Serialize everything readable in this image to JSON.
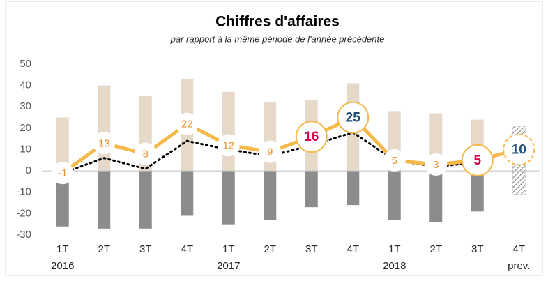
{
  "chart_data": {
    "type": "bar-line",
    "title": "Chiffres d'affaires",
    "subtitle": "par rapport à la même période de l'année précédente",
    "categories": [
      "1T",
      "2T",
      "3T",
      "4T",
      "1T",
      "2T",
      "3T",
      "4T",
      "1T",
      "2T",
      "3T",
      "4T"
    ],
    "sublabels": [
      "2016",
      null,
      null,
      null,
      "2017",
      null,
      null,
      null,
      "2018",
      null,
      null,
      "prev."
    ],
    "ylim": [
      -30,
      50
    ],
    "yticks": [
      -30,
      -20,
      -10,
      0,
      10,
      20,
      30,
      40,
      50
    ],
    "forecast_index": 11,
    "series": [
      {
        "kind": "bar",
        "color": "#e6d9ca",
        "values": [
          25,
          40,
          35,
          43,
          37,
          32,
          33,
          41,
          28,
          27,
          24,
          21
        ]
      },
      {
        "kind": "bar",
        "color": "#8c8c8c",
        "values": [
          -26,
          -27,
          -27,
          -21,
          -25,
          -23,
          -17,
          -16,
          -23,
          -24,
          -19,
          -11
        ]
      },
      {
        "kind": "dotted",
        "color": "#000000",
        "values": [
          -1,
          6,
          1,
          14,
          10,
          7,
          12,
          18,
          5,
          2,
          4,
          11
        ]
      },
      {
        "kind": "line",
        "color": "#f5b94a",
        "values": [
          -1,
          13,
          8,
          22,
          12,
          9,
          16,
          25,
          5,
          3,
          5,
          10
        ],
        "label_colors": [
          "#e8922a",
          "#e8922a",
          "#e8922a",
          "#e8922a",
          "#e8922a",
          "#e8922a",
          "#d6004f",
          "#1f4e79",
          "#e8922a",
          "#e8922a",
          "#d6004f",
          "#1f4e79"
        ]
      }
    ]
  }
}
